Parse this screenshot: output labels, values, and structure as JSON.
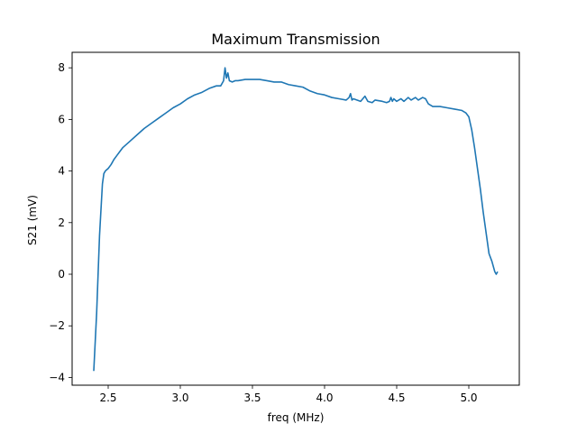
{
  "chart_data": {
    "type": "line",
    "title": "Maximum Transmission",
    "xlabel": "freq (MHz)",
    "ylabel": "S21 (mV)",
    "xlim": [
      2.25,
      5.35
    ],
    "ylim": [
      -4.3,
      8.6
    ],
    "xticks": [
      2.5,
      3.0,
      3.5,
      4.0,
      4.5,
      5.0
    ],
    "xtick_labels": [
      "2.5",
      "3.0",
      "3.5",
      "4.0",
      "4.5",
      "5.0"
    ],
    "yticks": [
      -4,
      -2,
      0,
      2,
      4,
      6,
      8
    ],
    "ytick_labels": [
      "−4",
      "−2",
      "0",
      "2",
      "4",
      "6",
      "8"
    ],
    "grid": false,
    "colors": {
      "series": "#1f77b4"
    },
    "series": [
      {
        "x": [
          2.4,
          2.42,
          2.44,
          2.46,
          2.47,
          2.48,
          2.49,
          2.5,
          2.52,
          2.54,
          2.56,
          2.58,
          2.6,
          2.65,
          2.7,
          2.75,
          2.8,
          2.85,
          2.9,
          2.95,
          3.0,
          3.05,
          3.1,
          3.15,
          3.2,
          3.25,
          3.28,
          3.3,
          3.31,
          3.32,
          3.33,
          3.34,
          3.36,
          3.38,
          3.4,
          3.45,
          3.5,
          3.55,
          3.6,
          3.65,
          3.7,
          3.75,
          3.8,
          3.85,
          3.9,
          3.95,
          4.0,
          4.05,
          4.1,
          4.15,
          4.17,
          4.18,
          4.19,
          4.2,
          4.25,
          4.28,
          4.3,
          4.33,
          4.35,
          4.4,
          4.43,
          4.45,
          4.46,
          4.47,
          4.48,
          4.5,
          4.53,
          4.55,
          4.58,
          4.6,
          4.63,
          4.65,
          4.68,
          4.7,
          4.72,
          4.75,
          4.8,
          4.85,
          4.9,
          4.95,
          4.98,
          5.0,
          5.02,
          5.04,
          5.06,
          5.08,
          5.1,
          5.12,
          5.14,
          5.16,
          5.18,
          5.19,
          5.2
        ],
        "y": [
          -3.75,
          -1.5,
          1.5,
          3.5,
          3.9,
          4.0,
          4.05,
          4.1,
          4.25,
          4.45,
          4.6,
          4.75,
          4.9,
          5.15,
          5.4,
          5.65,
          5.85,
          6.05,
          6.25,
          6.45,
          6.6,
          6.8,
          6.95,
          7.05,
          7.2,
          7.3,
          7.3,
          7.5,
          8.0,
          7.6,
          7.8,
          7.5,
          7.45,
          7.5,
          7.5,
          7.55,
          7.55,
          7.55,
          7.5,
          7.45,
          7.45,
          7.35,
          7.3,
          7.25,
          7.1,
          7.0,
          6.95,
          6.85,
          6.8,
          6.75,
          6.85,
          7.0,
          6.75,
          6.8,
          6.7,
          6.9,
          6.7,
          6.65,
          6.75,
          6.7,
          6.65,
          6.7,
          6.85,
          6.7,
          6.8,
          6.7,
          6.8,
          6.7,
          6.85,
          6.75,
          6.85,
          6.75,
          6.85,
          6.8,
          6.6,
          6.5,
          6.5,
          6.45,
          6.4,
          6.35,
          6.25,
          6.1,
          5.6,
          4.9,
          4.1,
          3.3,
          2.4,
          1.6,
          0.8,
          0.5,
          0.1,
          0.0,
          0.1
        ]
      }
    ]
  }
}
